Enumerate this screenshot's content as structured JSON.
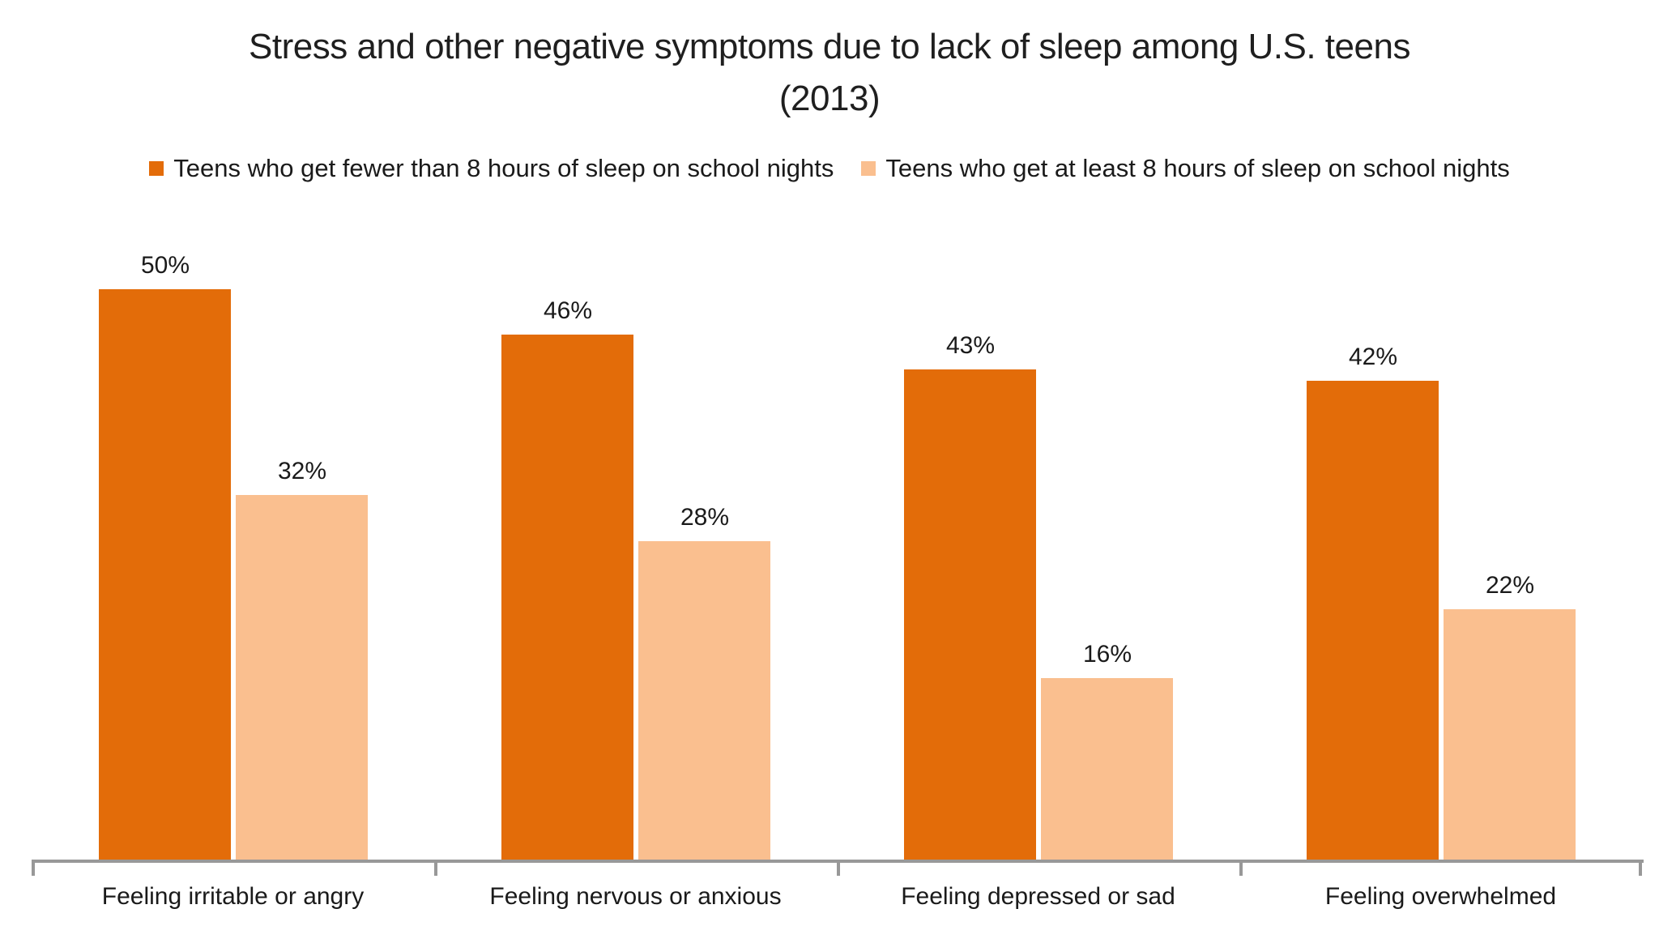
{
  "chart_data": {
    "type": "bar",
    "title": "Stress and other negative symptoms due to lack of sleep among U.S. teens (2013)",
    "categories": [
      "Feeling irritable or angry",
      "Feeling nervous or anxious",
      "Feeling depressed or sad",
      "Feeling overwhelmed"
    ],
    "series": [
      {
        "name": "Teens who get fewer than 8 hours of sleep on school nights",
        "color": "#E36C09",
        "values": [
          50,
          46,
          43,
          42
        ]
      },
      {
        "name": "Teens who get at least 8 hours of sleep on school nights",
        "color": "#FABF8F",
        "values": [
          32,
          28,
          16,
          22
        ]
      }
    ],
    "value_suffix": "%",
    "data_labels": [
      "50%",
      "46%",
      "43%",
      "42%",
      "32%",
      "28%",
      "16%",
      "22%"
    ],
    "ylim": [
      0,
      57
    ],
    "xlabel": "",
    "ylabel": "",
    "grid": false,
    "legend_position": "top",
    "axis_color": "#989898",
    "background_color": "#FFFFFF"
  }
}
